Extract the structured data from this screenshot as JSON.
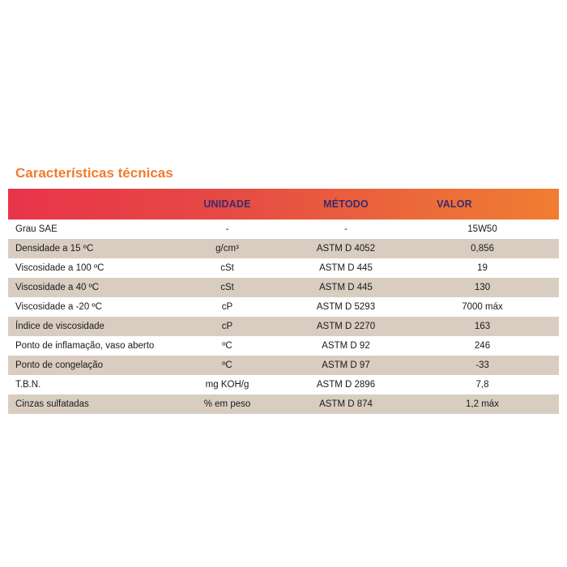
{
  "title": "Características técnicas",
  "headers": {
    "property": "",
    "unit": "UNIDADE",
    "method": "MÉTODO",
    "value": "VALOR"
  },
  "rows": [
    {
      "property": "Grau SAE",
      "unit": "-",
      "method": "-",
      "value": "15W50"
    },
    {
      "property": "Densidade a 15 ºC",
      "unit": "g/cm³",
      "method": "ASTM D 4052",
      "value": "0,856"
    },
    {
      "property": "Viscosidade a 100 ºC",
      "unit": "cSt",
      "method": "ASTM D 445",
      "value": "19"
    },
    {
      "property": "Viscosidade a 40 ºC",
      "unit": "cSt",
      "method": "ASTM D 445",
      "value": "130"
    },
    {
      "property": "Viscosidade a -20 ºC",
      "unit": "cP",
      "method": "ASTM D 5293",
      "value": "7000 máx"
    },
    {
      "property": "Índice de viscosidade",
      "unit": "cP",
      "method": "ASTM D 2270",
      "value": "163"
    },
    {
      "property": "Ponto de inflamação, vaso aberto",
      "unit": "ºC",
      "method": "ASTM D 92",
      "value": "246"
    },
    {
      "property": "Ponto de congelação",
      "unit": "ºC",
      "method": "ASTM D 97",
      "value": "-33"
    },
    {
      "property": "T.B.N.",
      "unit": "mg KOH/g",
      "method": "ASTM D 2896",
      "value": "7,8"
    },
    {
      "property": "Cinzas sulfatadas",
      "unit": "% em peso",
      "method": "ASTM D 874",
      "value": "1,2 máx"
    }
  ],
  "colors": {
    "title": "#ef7d2a",
    "header_start": "#e8344a",
    "header_end": "#f07e32",
    "header_text": "#3b2b6e",
    "row_shade": "#d9cdc1"
  }
}
